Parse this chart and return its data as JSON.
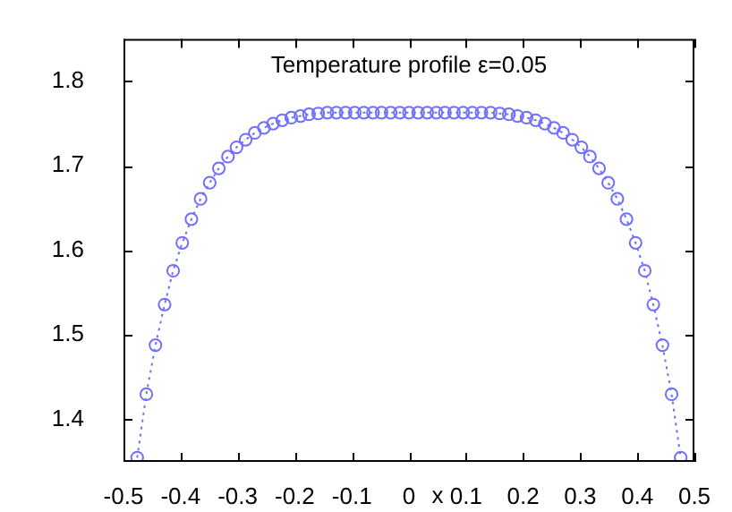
{
  "chart_data": {
    "type": "line",
    "title": "Temperature profile ε=0.05",
    "xlabel": "x",
    "x": [
      -0.476,
      -0.46,
      -0.444,
      -0.428,
      -0.413,
      -0.397,
      -0.381,
      -0.365,
      -0.349,
      -0.333,
      -0.317,
      -0.302,
      -0.286,
      -0.27,
      -0.254,
      -0.238,
      -0.222,
      -0.206,
      -0.19,
      -0.175,
      -0.159,
      -0.143,
      -0.127,
      -0.111,
      -0.095,
      -0.079,
      -0.063,
      -0.048,
      -0.032,
      -0.016,
      0,
      0.016,
      0.032,
      0.048,
      0.063,
      0.079,
      0.095,
      0.111,
      0.127,
      0.143,
      0.159,
      0.175,
      0.19,
      0.206,
      0.222,
      0.238,
      0.254,
      0.27,
      0.286,
      0.302,
      0.317,
      0.333,
      0.349,
      0.365,
      0.381,
      0.397,
      0.413,
      0.428,
      0.444,
      0.46,
      0.476
    ],
    "series": [
      {
        "color": "#6f6fff",
        "values": [
          1.355,
          1.43,
          1.488,
          1.536,
          1.576,
          1.609,
          1.637,
          1.661,
          1.68,
          1.697,
          1.711,
          1.722,
          1.731,
          1.739,
          1.745,
          1.75,
          1.754,
          1.757,
          1.759,
          1.761,
          1.762,
          1.763,
          1.763,
          1.763,
          1.763,
          1.763,
          1.763,
          1.763,
          1.763,
          1.763,
          1.763,
          1.763,
          1.763,
          1.763,
          1.763,
          1.763,
          1.763,
          1.763,
          1.763,
          1.763,
          1.762,
          1.761,
          1.759,
          1.757,
          1.754,
          1.75,
          1.745,
          1.739,
          1.731,
          1.722,
          1.711,
          1.697,
          1.68,
          1.661,
          1.637,
          1.609,
          1.576,
          1.536,
          1.488,
          1.43,
          1.355
        ]
      }
    ],
    "xlim": [
      -0.5,
      0.5
    ],
    "xticks": [
      -0.5,
      -0.4,
      -0.3,
      -0.2,
      -0.1,
      0,
      0.1,
      0.2,
      0.3,
      0.4,
      0.5
    ],
    "ylim": [
      1.35,
      1.85
    ],
    "yticks": [
      1.4,
      1.5,
      1.6,
      1.7,
      1.8
    ],
    "grid": false,
    "legend": false,
    "marker": "circle",
    "line_style": "dotted"
  }
}
